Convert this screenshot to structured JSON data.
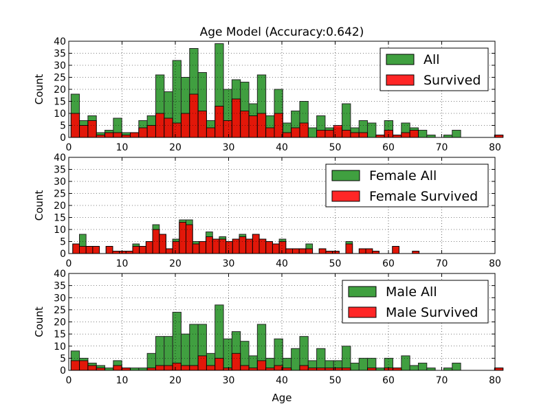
{
  "colors": {
    "all": "#1f8f1f",
    "survived": "#ff0000",
    "edge": "#000000",
    "grid": "#000000"
  },
  "chart_data": [
    {
      "type": "bar",
      "title": "Age Model (Accuracy:0.642)",
      "ylabel": "Count",
      "xlabel": "",
      "xlim": [
        0,
        80
      ],
      "ylim": [
        0,
        40
      ],
      "xticks": [
        0,
        10,
        20,
        30,
        40,
        50,
        60,
        70,
        80
      ],
      "yticks": [
        0,
        5,
        10,
        15,
        20,
        25,
        30,
        35,
        40
      ],
      "grid": true,
      "legend": "top-right",
      "bin_edges_start": 0.42,
      "bin_width": 1.59,
      "series": [
        {
          "name": "All",
          "values": [
            18,
            7,
            9,
            2,
            3,
            8,
            2,
            2,
            7,
            9,
            26,
            19,
            32,
            25,
            37,
            27,
            7,
            39,
            20,
            24,
            23,
            14,
            26,
            9,
            20,
            6,
            11,
            15,
            4,
            9,
            4,
            4,
            14,
            4,
            7,
            6,
            1,
            7,
            1,
            6,
            4,
            3,
            1,
            0,
            1,
            3,
            0,
            0,
            0,
            0,
            1
          ]
        },
        {
          "name": "Survived",
          "values": [
            10,
            5,
            7,
            1,
            2,
            2,
            1,
            2,
            4,
            5,
            10,
            8,
            6,
            10,
            18,
            11,
            4,
            13,
            7,
            16,
            11,
            9,
            10,
            4,
            10,
            2,
            4,
            6,
            0,
            3,
            3,
            5,
            3,
            2,
            2,
            0,
            1,
            3,
            1,
            2,
            3,
            0,
            0,
            0,
            0,
            0,
            0,
            0,
            0,
            0,
            1
          ]
        }
      ]
    },
    {
      "type": "bar",
      "title": "",
      "ylabel": "Count",
      "xlabel": "",
      "xlim": [
        0,
        80
      ],
      "ylim": [
        0,
        40
      ],
      "xticks": [
        0,
        10,
        20,
        30,
        40,
        50,
        60,
        70,
        80
      ],
      "yticks": [
        0,
        5,
        10,
        15,
        20,
        25,
        30,
        35,
        40
      ],
      "grid": true,
      "legend": "top-right",
      "bin_edges_start": 0.75,
      "bin_width": 1.25,
      "series": [
        {
          "name": "Female All",
          "values": [
            4,
            8,
            3,
            3,
            0,
            3,
            1,
            1,
            1,
            4,
            3,
            5,
            12,
            8,
            2,
            6,
            14,
            14,
            5,
            5,
            9,
            6,
            7,
            5,
            6,
            8,
            6,
            8,
            6,
            5,
            4,
            6,
            2,
            2,
            2,
            4,
            0,
            2,
            1,
            1,
            0,
            5,
            0,
            2,
            2,
            1,
            0,
            0,
            3,
            0,
            0,
            1,
            0,
            0,
            0,
            0,
            0,
            0,
            0,
            0,
            0,
            0,
            0,
            0
          ]
        },
        {
          "name": "Female Survived",
          "values": [
            4,
            3,
            3,
            3,
            0,
            3,
            1,
            1,
            1,
            3,
            3,
            5,
            10,
            8,
            2,
            5,
            13,
            12,
            4,
            5,
            7,
            6,
            6,
            5,
            6,
            7,
            6,
            8,
            6,
            5,
            4,
            5,
            2,
            2,
            2,
            2,
            0,
            2,
            1,
            1,
            0,
            4,
            0,
            2,
            2,
            1,
            0,
            0,
            3,
            0,
            0,
            1,
            0,
            0,
            0,
            0,
            0,
            0,
            0,
            0,
            0,
            0,
            0,
            0
          ]
        }
      ]
    },
    {
      "type": "bar",
      "title": "",
      "ylabel": "Count",
      "xlabel": "Age",
      "xlim": [
        0,
        80
      ],
      "ylim": [
        0,
        40
      ],
      "xticks": [
        0,
        10,
        20,
        30,
        40,
        50,
        60,
        70,
        80
      ],
      "yticks": [
        0,
        5,
        10,
        15,
        20,
        25,
        30,
        35,
        40
      ],
      "grid": true,
      "legend": "top-right",
      "bin_edges_start": 0.42,
      "bin_width": 1.59,
      "series": [
        {
          "name": "Male All",
          "values": [
            8,
            5,
            3,
            2,
            1,
            4,
            1,
            1,
            1,
            7,
            14,
            14,
            24,
            15,
            19,
            19,
            7,
            27,
            13,
            16,
            12,
            6,
            19,
            5,
            13,
            5,
            9,
            14,
            4,
            9,
            4,
            4,
            10,
            3,
            5,
            5,
            1,
            5,
            1,
            6,
            2,
            3,
            1,
            0,
            1,
            3,
            0,
            0,
            0,
            0,
            1
          ]
        },
        {
          "name": "Male Survived",
          "values": [
            4,
            4,
            2,
            1,
            0,
            2,
            1,
            0,
            0,
            1,
            2,
            2,
            3,
            2,
            2,
            6,
            2,
            5,
            1,
            7,
            2,
            1,
            4,
            1,
            2,
            1,
            0,
            2,
            1,
            1,
            1,
            1,
            1,
            0,
            0,
            1,
            0,
            1,
            1,
            0,
            0,
            0,
            0,
            0,
            0,
            0,
            0,
            0,
            0,
            0,
            1
          ]
        }
      ]
    }
  ]
}
